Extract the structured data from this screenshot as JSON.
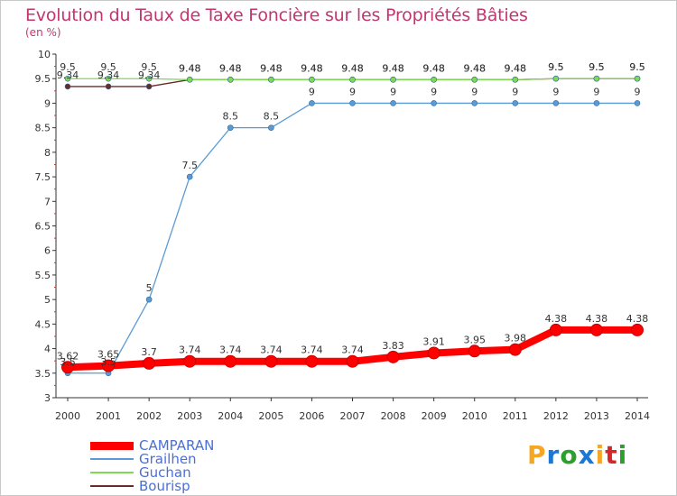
{
  "chart_data": {
    "type": "line",
    "title": "Evolution du Taux de Taxe Foncière sur les Propriétés Bâties",
    "subtitle": "(en %)",
    "xlabel": "",
    "ylabel": "",
    "categories": [
      "2000",
      "2001",
      "2002",
      "2003",
      "2004",
      "2005",
      "2006",
      "2007",
      "2008",
      "2009",
      "2010",
      "2011",
      "2012",
      "2013",
      "2014"
    ],
    "ylim": [
      3,
      10
    ],
    "yticks": [
      "3",
      "3.5",
      "4",
      "4.5",
      "5",
      "5.5",
      "6",
      "6.5",
      "7",
      "7.5",
      "8",
      "8.5",
      "9",
      "9.5",
      "10"
    ],
    "grid": false,
    "legend_position": "bottom-left",
    "series": [
      {
        "name": "CAMPARAN",
        "color": "#ff0000",
        "values": [
          3.62,
          3.65,
          3.7,
          3.74,
          3.74,
          3.74,
          3.74,
          3.74,
          3.83,
          3.91,
          3.95,
          3.98,
          4.38,
          4.38,
          4.38
        ],
        "labels": [
          "3.62",
          "3.65",
          "3.7",
          "3.74",
          "3.74",
          "3.74",
          "3.74",
          "3.74",
          "3.83",
          "3.91",
          "3.95",
          "3.98",
          "4.38",
          "4.38",
          "4.38"
        ]
      },
      {
        "name": "Grailhen",
        "color": "#5b9bd5",
        "values": [
          3.5,
          3.5,
          5,
          7.5,
          8.5,
          8.5,
          9,
          9,
          9,
          9,
          9,
          9,
          9,
          9,
          9
        ],
        "labels": [
          "3.5",
          "3.5",
          "5",
          "7.5",
          "8.5",
          "8.5",
          "9",
          "9",
          "9",
          "9",
          "9",
          "9",
          "9",
          "9",
          "9"
        ]
      },
      {
        "name": "Guchan",
        "color": "#7ed957",
        "values": [
          9.5,
          9.5,
          9.5,
          9.48,
          9.48,
          9.48,
          9.48,
          9.48,
          9.48,
          9.48,
          9.48,
          9.48,
          9.5,
          9.5,
          9.5
        ],
        "labels": [
          "9.5",
          "9.5",
          "9.5",
          "9.48",
          "9.48",
          "9.48",
          "9.48",
          "9.48",
          "9.48",
          "9.48",
          "9.48",
          "9.48",
          "9.5",
          "9.5",
          "9.5"
        ]
      },
      {
        "name": "Bourisp",
        "color": "#6b2a2a",
        "values": [
          9.34,
          9.34,
          9.34,
          9.48,
          9.48,
          9.48,
          9.48,
          9.48,
          9.48,
          9.48,
          9.48,
          9.48,
          9.5,
          9.5,
          9.5
        ],
        "labels": [
          "9.34",
          "9.34",
          "9.34",
          "9.48",
          "9.48",
          "9.48",
          "9.48",
          "9.48",
          "9.48",
          "9.48",
          "9.48",
          "9.48",
          "9.5",
          "9.5",
          "9.5"
        ]
      }
    ]
  },
  "branding": {
    "logo_letters": [
      "P",
      "r",
      "o",
      "x",
      "i",
      "t",
      "i"
    ],
    "logo_colors": [
      "#f5a623",
      "#1f77d4",
      "#2ca02c",
      "#1f77d4",
      "#f5a623",
      "#d62728",
      "#2ca02c"
    ]
  }
}
